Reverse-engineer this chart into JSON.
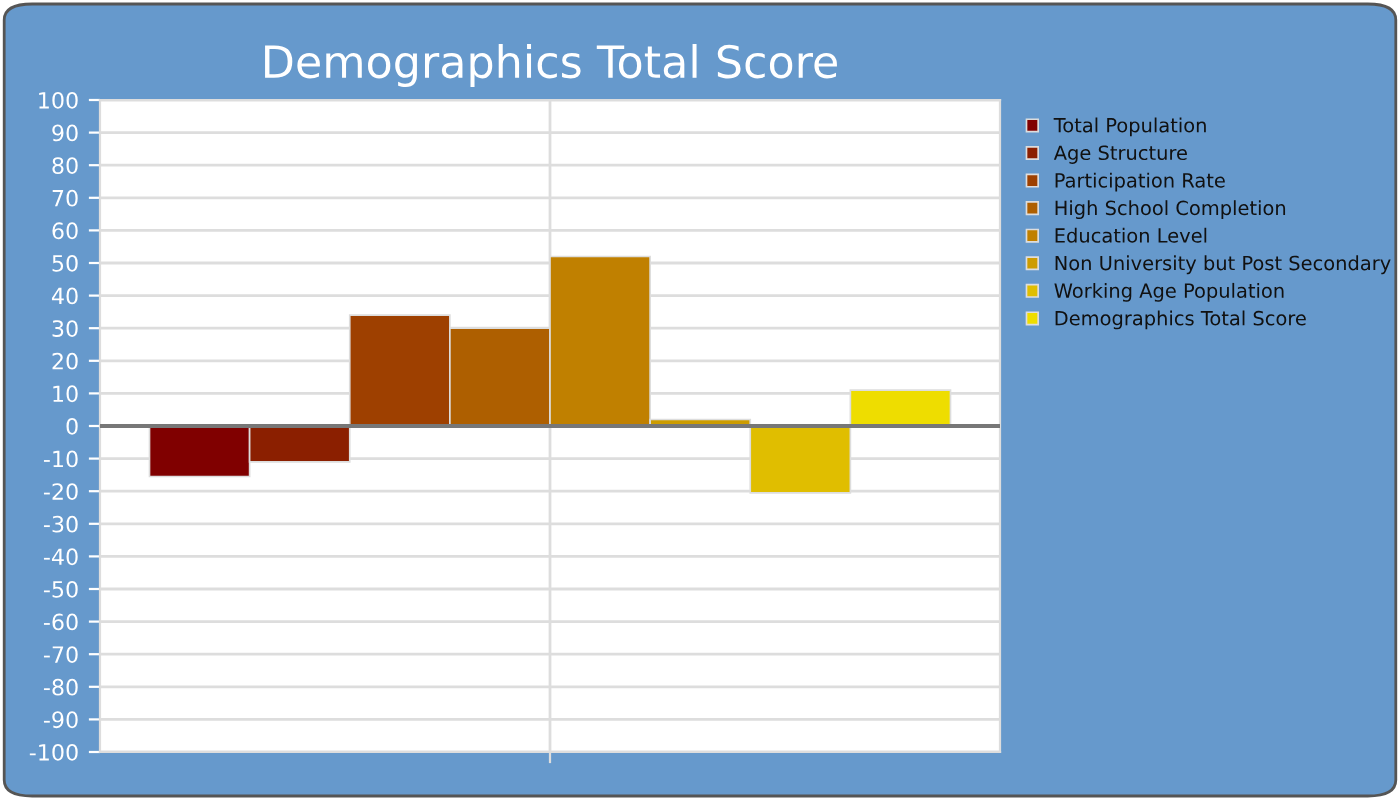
{
  "chart_data": {
    "type": "bar",
    "title": "Demographics Total Score",
    "categories": [
      null
    ],
    "series": [
      {
        "name": "Total Population",
        "color": "#800000",
        "values": [
          -15.5
        ]
      },
      {
        "name": "Age Structure",
        "color": "#8b1f00",
        "values": [
          -11
        ]
      },
      {
        "name": "Participation Rate",
        "color": "#9e4000",
        "values": [
          34
        ]
      },
      {
        "name": "High School Completion",
        "color": "#ae5f00",
        "values": [
          30
        ]
      },
      {
        "name": "Education Level",
        "color": "#c08000",
        "values": [
          52
        ]
      },
      {
        "name": "Non University but Post Secondary",
        "color": "#cd9c00",
        "values": [
          2
        ]
      },
      {
        "name": "Working Age Population",
        "color": "#e0be00",
        "values": [
          -20.5
        ]
      },
      {
        "name": "Demographics Total Score",
        "color": "#eedd00",
        "values": [
          11
        ]
      }
    ],
    "ylim": [
      -100,
      100
    ],
    "yticks": [
      -100,
      -90,
      -80,
      -70,
      -60,
      -50,
      -40,
      -30,
      -20,
      -10,
      0,
      10,
      20,
      30,
      40,
      50,
      60,
      70,
      80,
      90,
      100
    ],
    "grid": true,
    "legend": "right"
  }
}
